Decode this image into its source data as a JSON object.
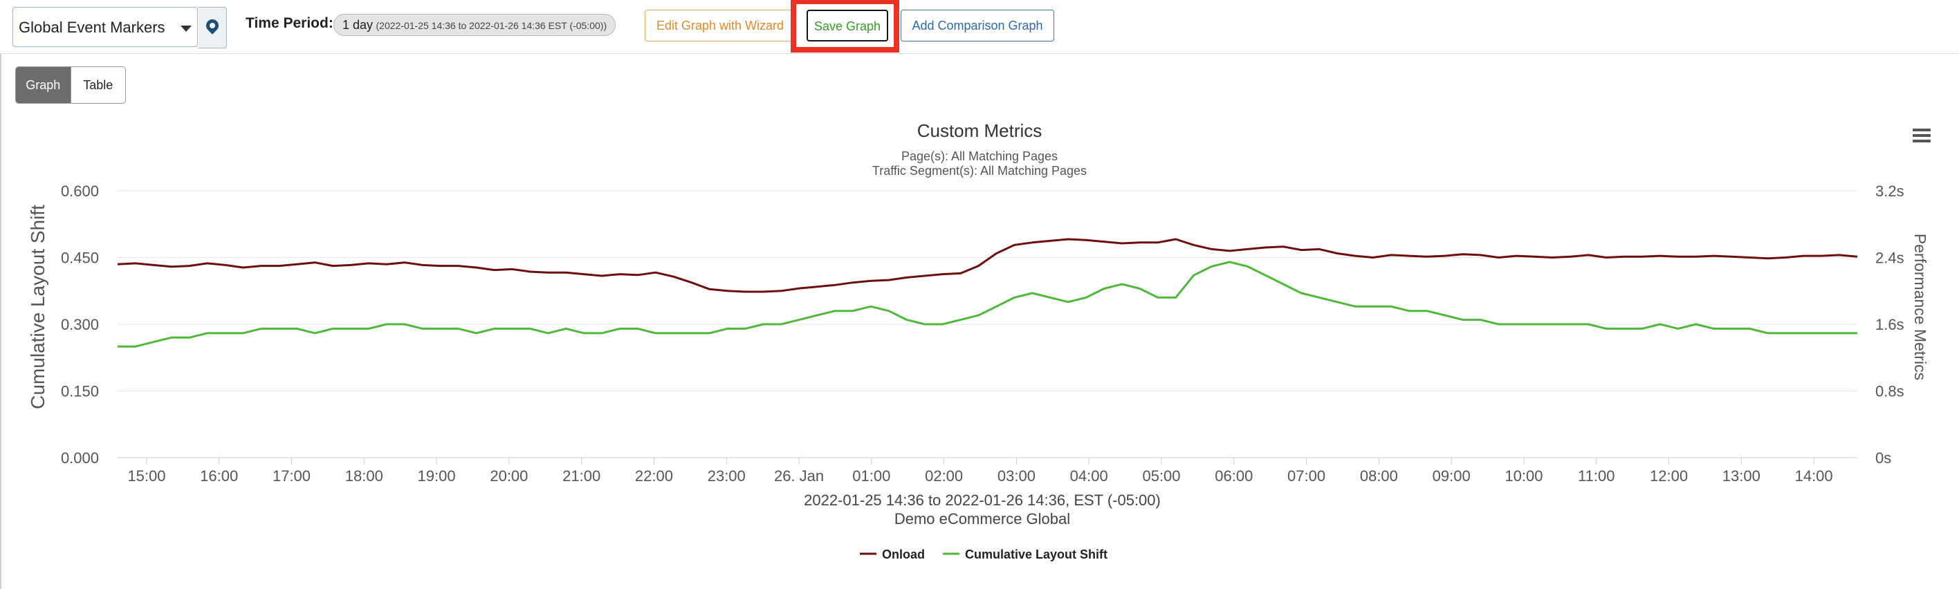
{
  "toolbar": {
    "markers_label": "Global Event Markers",
    "time_period_label": "Time Period:",
    "time_period_value": "1 day",
    "time_period_range": "(2022-01-25 14:36 to 2022-01-26 14:36 EST (-05:00))",
    "edit_wizard_label": "Edit Graph with Wizard",
    "save_label": "Save Graph",
    "compare_label": "Add Comparison Graph"
  },
  "view_toggle": {
    "graph_label": "Graph",
    "table_label": "Table",
    "active": "Graph"
  },
  "icons": {
    "marker": "map-pin-icon",
    "menu": "hamburger-menu-icon",
    "dropdown": "caret-down-icon"
  },
  "colors": {
    "onload": "#6b0f0f",
    "cls": "#4fb83a",
    "save_highlight": "#ea3323"
  },
  "chart_data": {
    "type": "line",
    "title": "Custom Metrics",
    "subtitle_pages": "Page(s): All Matching Pages",
    "subtitle_segment": "Traffic Segment(s): All Matching Pages",
    "xlabel_range": "2022-01-25 14:36 to 2022-01-26 14:36, EST (-05:00)",
    "xlabel_site": "Demo eCommerce Global",
    "ylabel_left": "Cumulative Layout Shift",
    "ylabel_right": "Performance Metrics",
    "x_ticks": [
      "15:00",
      "16:00",
      "17:00",
      "18:00",
      "19:00",
      "20:00",
      "21:00",
      "22:00",
      "23:00",
      "26. Jan",
      "01:00",
      "02:00",
      "03:00",
      "04:00",
      "05:00",
      "06:00",
      "07:00",
      "08:00",
      "09:00",
      "10:00",
      "11:00",
      "12:00",
      "13:00",
      "14:00"
    ],
    "x_start_hours": 14.6,
    "x_end_hours": 38.6,
    "first_tick_hours": 15,
    "y_left_ticks": [
      "0.000",
      "0.150",
      "0.300",
      "0.450",
      "0.600"
    ],
    "y_left_range": [
      0,
      0.6
    ],
    "y_right_ticks": [
      "0s",
      "0.8s",
      "1.6s",
      "2.4s",
      "3.2s"
    ],
    "y_right_range": [
      0,
      3.2
    ],
    "grid": true,
    "legend_position": "bottom-center",
    "series": [
      {
        "name": "Onload",
        "axis": "right",
        "color": "#6b0f0f",
        "values": [
          2.32,
          2.33,
          2.31,
          2.29,
          2.3,
          2.33,
          2.31,
          2.28,
          2.3,
          2.3,
          2.32,
          2.34,
          2.3,
          2.31,
          2.33,
          2.32,
          2.34,
          2.31,
          2.3,
          2.3,
          2.28,
          2.25,
          2.26,
          2.23,
          2.22,
          2.22,
          2.2,
          2.18,
          2.2,
          2.19,
          2.22,
          2.17,
          2.1,
          2.02,
          2.0,
          1.99,
          1.99,
          2.0,
          2.03,
          2.05,
          2.07,
          2.1,
          2.12,
          2.13,
          2.16,
          2.18,
          2.2,
          2.21,
          2.3,
          2.45,
          2.55,
          2.58,
          2.6,
          2.62,
          2.61,
          2.59,
          2.57,
          2.58,
          2.58,
          2.62,
          2.55,
          2.5,
          2.48,
          2.5,
          2.52,
          2.53,
          2.49,
          2.5,
          2.45,
          2.42,
          2.4,
          2.43,
          2.42,
          2.41,
          2.42,
          2.44,
          2.43,
          2.4,
          2.42,
          2.41,
          2.4,
          2.41,
          2.43,
          2.4,
          2.41,
          2.41,
          2.42,
          2.41,
          2.41,
          2.42,
          2.41,
          2.4,
          2.39,
          2.4,
          2.42,
          2.42,
          2.43,
          2.41
        ]
      },
      {
        "name": "Cumulative Layout Shift",
        "axis": "left",
        "color": "#4fb83a",
        "values": [
          0.25,
          0.25,
          0.26,
          0.27,
          0.27,
          0.28,
          0.28,
          0.28,
          0.29,
          0.29,
          0.29,
          0.28,
          0.29,
          0.29,
          0.29,
          0.3,
          0.3,
          0.29,
          0.29,
          0.29,
          0.28,
          0.29,
          0.29,
          0.29,
          0.28,
          0.29,
          0.28,
          0.28,
          0.29,
          0.29,
          0.28,
          0.28,
          0.28,
          0.28,
          0.29,
          0.29,
          0.3,
          0.3,
          0.31,
          0.32,
          0.33,
          0.33,
          0.34,
          0.33,
          0.31,
          0.3,
          0.3,
          0.31,
          0.32,
          0.34,
          0.36,
          0.37,
          0.36,
          0.35,
          0.36,
          0.38,
          0.39,
          0.38,
          0.36,
          0.36,
          0.41,
          0.43,
          0.44,
          0.43,
          0.41,
          0.39,
          0.37,
          0.36,
          0.35,
          0.34,
          0.34,
          0.34,
          0.33,
          0.33,
          0.32,
          0.31,
          0.31,
          0.3,
          0.3,
          0.3,
          0.3,
          0.3,
          0.3,
          0.29,
          0.29,
          0.29,
          0.3,
          0.29,
          0.3,
          0.29,
          0.29,
          0.29,
          0.28,
          0.28,
          0.28,
          0.28,
          0.28,
          0.28
        ]
      }
    ]
  }
}
